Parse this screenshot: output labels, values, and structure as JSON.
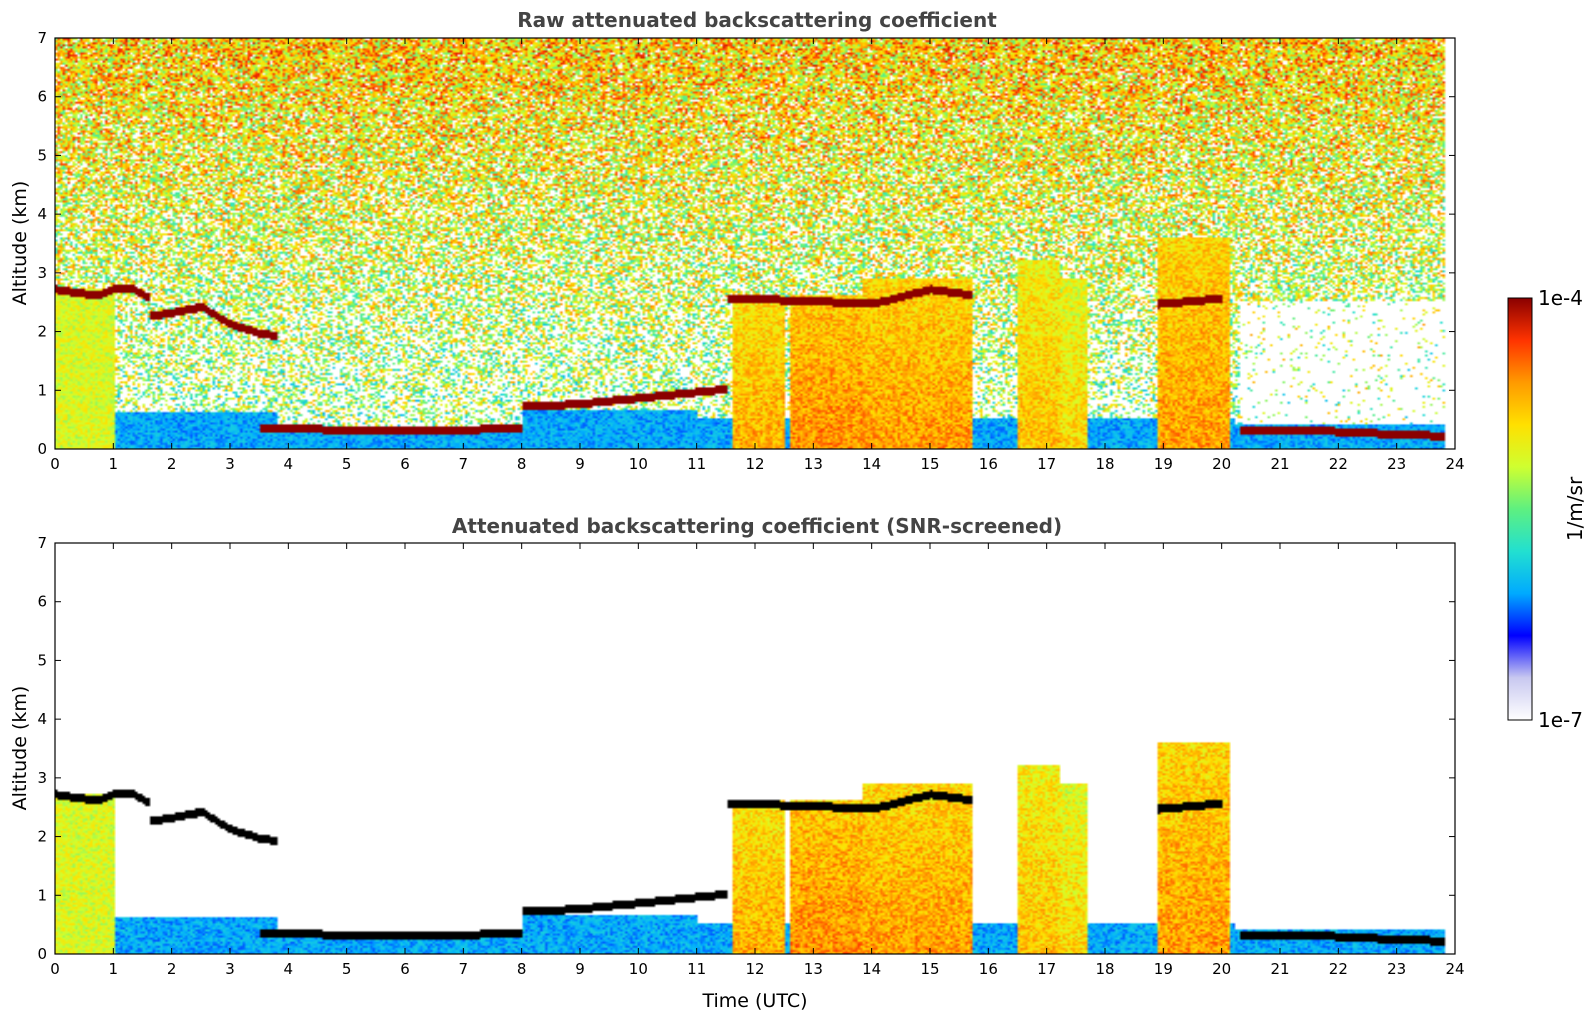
{
  "colors": {
    "colormap": [
      "#ffffff",
      "#c8c8f0",
      "#0000ff",
      "#00aaff",
      "#22e0d0",
      "#5ef080",
      "#cfff30",
      "#ffe000",
      "#ff9a00",
      "#ff3300",
      "#8a0000"
    ],
    "layer_marker_top": "#8b0000",
    "layer_marker_bottom": "#000000"
  },
  "colorbar": {
    "max_label": "1e-4",
    "min_label": "1e-7",
    "unit_label": "1/m/sr",
    "scale": "log",
    "range": [
      1e-07,
      0.0001
    ]
  },
  "chart_data": [
    {
      "type": "heatmap",
      "title": "Raw attenuated backscattering coefficient",
      "xlabel": "",
      "ylabel": "Altitude (km)",
      "xlim": [
        0,
        24
      ],
      "ylim": [
        0,
        7
      ],
      "xticks": [
        "0",
        "1",
        "2",
        "3",
        "4",
        "5",
        "6",
        "7",
        "8",
        "9",
        "10",
        "11",
        "12",
        "13",
        "14",
        "15",
        "16",
        "17",
        "18",
        "19",
        "20",
        "21",
        "22",
        "23",
        "24"
      ],
      "yticks": [
        "0",
        "1",
        "2",
        "3",
        "4",
        "5",
        "6",
        "7"
      ],
      "data_end_time": 23.8,
      "layers": [
        {
          "t": [
            0.0,
            0.3,
            0.7,
            1.0,
            1.3,
            1.6
          ],
          "alt": [
            2.7,
            2.65,
            2.6,
            2.7,
            2.72,
            2.55
          ]
        },
        {
          "t": [
            1.6,
            2.0,
            2.5,
            3.0,
            3.5,
            3.8
          ],
          "alt": [
            2.25,
            2.3,
            2.4,
            2.1,
            1.95,
            1.9
          ]
        },
        {
          "t": [
            3.5,
            5.0,
            6.5,
            7.5,
            8.0
          ],
          "alt": [
            0.35,
            0.3,
            0.3,
            0.32,
            0.35
          ]
        },
        {
          "t": [
            8.0,
            9.0,
            10.0,
            11.0,
            11.5
          ],
          "alt": [
            0.7,
            0.75,
            0.85,
            0.95,
            1.0
          ]
        },
        {
          "t": [
            11.5,
            13.0,
            14.0,
            15.0,
            15.7
          ],
          "alt": [
            2.55,
            2.5,
            2.45,
            2.7,
            2.6
          ]
        },
        {
          "t": [
            18.9,
            19.5,
            20.0
          ],
          "alt": [
            2.45,
            2.5,
            2.55
          ]
        },
        {
          "t": [
            20.3,
            21.5,
            22.5,
            23.8
          ],
          "alt": [
            0.3,
            0.3,
            0.25,
            0.2
          ]
        }
      ],
      "cloud_columns": [
        {
          "t0": 11.6,
          "t1": 12.5,
          "top": 2.6,
          "level": 0.78
        },
        {
          "t0": 12.6,
          "t1": 13.8,
          "top": 2.6,
          "level": 0.82
        },
        {
          "t0": 13.8,
          "t1": 15.7,
          "top": 2.9,
          "level": 0.8
        },
        {
          "t0": 16.5,
          "t1": 17.2,
          "top": 3.2,
          "level": 0.75
        },
        {
          "t0": 17.2,
          "t1": 17.7,
          "top": 2.9,
          "level": 0.72
        },
        {
          "t0": 18.9,
          "t1": 20.1,
          "top": 3.6,
          "level": 0.8
        }
      ]
    },
    {
      "type": "heatmap",
      "title": "Attenuated backscattering coefficient (SNR-screened)",
      "xlabel": "Time (UTC)",
      "ylabel": "Altitude (km)",
      "xlim": [
        0,
        24
      ],
      "ylim": [
        0,
        7
      ],
      "xticks": [
        "0",
        "1",
        "2",
        "3",
        "4",
        "5",
        "6",
        "7",
        "8",
        "9",
        "10",
        "11",
        "12",
        "13",
        "14",
        "15",
        "16",
        "17",
        "18",
        "19",
        "20",
        "21",
        "22",
        "23",
        "24"
      ],
      "yticks": [
        "0",
        "1",
        "2",
        "3",
        "4",
        "5",
        "6",
        "7"
      ],
      "data_end_time": 23.8,
      "screened": true
    }
  ]
}
